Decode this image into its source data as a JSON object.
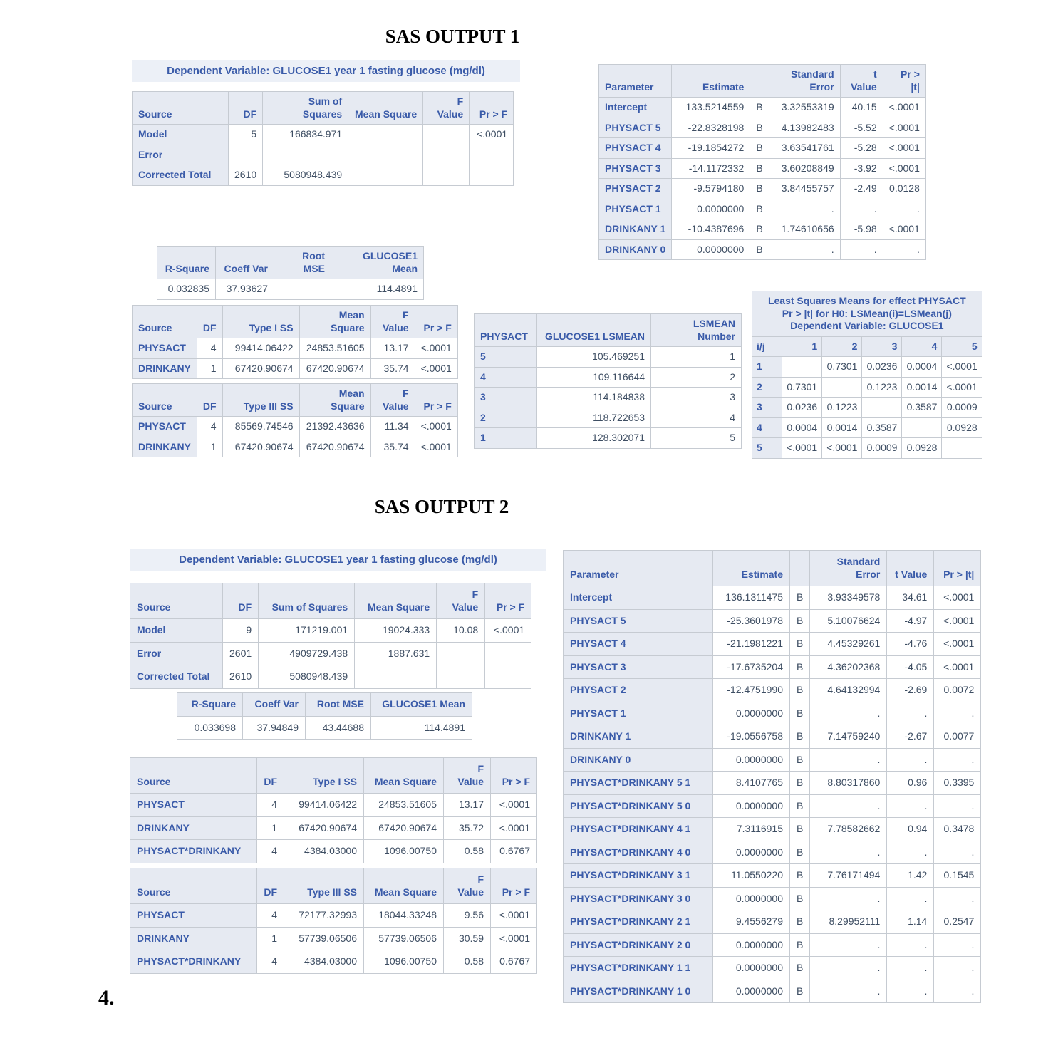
{
  "theme": {
    "header_bg": "#E6EAF2",
    "band_bg": "#ECF0F7",
    "border": "#C6CBD2",
    "header_text": "#3A5BA9",
    "data_text": "#3E4E63"
  },
  "titles": {
    "output1": "SAS OUTPUT 1",
    "output2": "SAS OUTPUT 2",
    "question_number": "4."
  },
  "output1": {
    "dep_var": "Dependent Variable: GLUCOSE1 year 1 fasting glucose (mg/dl)",
    "anova": {
      "columns": [
        "Source",
        "DF",
        "Sum of Squares",
        "Mean Square",
        "F Value",
        "Pr > F"
      ],
      "align": [
        "left",
        "right",
        "right",
        "right",
        "right",
        "right"
      ],
      "widths": [
        135,
        45,
        120,
        105,
        65,
        62
      ],
      "header_cols": 1,
      "rows": [
        [
          "Model",
          "5",
          "166834.971",
          "",
          "",
          "<.0001"
        ],
        [
          "Error",
          "",
          "",
          "",
          "",
          ""
        ],
        [
          "Corrected Total",
          "2610",
          "5080948.439",
          "",
          "",
          ""
        ]
      ]
    },
    "fit": {
      "columns": [
        "R-Square",
        "Coeff Var",
        "Root MSE",
        "GLUCOSE1 Mean"
      ],
      "align": [
        "right",
        "right",
        "right",
        "right"
      ],
      "widths": [
        82,
        82,
        80,
        130
      ],
      "header_cols": 0,
      "rows": [
        [
          "0.032835",
          "37.93627",
          "",
          "114.4891"
        ]
      ]
    },
    "type1": {
      "columns": [
        "Source",
        "DF",
        "Type I SS",
        "Mean Square",
        "F Value",
        "Pr > F"
      ],
      "align": [
        "left",
        "right",
        "right",
        "right",
        "right",
        "right"
      ],
      "widths": [
        85,
        35,
        108,
        100,
        62,
        60
      ],
      "header_cols": 1,
      "rows": [
        [
          "PHYSACT",
          "4",
          "99414.06422",
          "24853.51605",
          "13.17",
          "<.0001"
        ],
        [
          "DRINKANY",
          "1",
          "67420.90674",
          "67420.90674",
          "35.74",
          "<.0001"
        ]
      ]
    },
    "type3": {
      "columns": [
        "Source",
        "DF",
        "Type III SS",
        "Mean Square",
        "F Value",
        "Pr > F"
      ],
      "align": [
        "left",
        "right",
        "right",
        "right",
        "right",
        "right"
      ],
      "widths": [
        85,
        35,
        108,
        100,
        62,
        60
      ],
      "header_cols": 1,
      "rows": [
        [
          "PHYSACT",
          "4",
          "85569.74546",
          "21392.43636",
          "11.34",
          "<.0001"
        ],
        [
          "DRINKANY",
          "1",
          "67420.90674",
          "67420.90674",
          "35.74",
          "<.0001"
        ]
      ]
    },
    "estimates": {
      "columns": [
        "Parameter",
        "Estimate",
        "",
        "Standard\nError",
        "t Value",
        "Pr > |t|"
      ],
      "align": [
        "left",
        "right",
        "center",
        "right",
        "right",
        "right"
      ],
      "widths": [
        95,
        110,
        22,
        100,
        60,
        60
      ],
      "header_cols": 1,
      "rows": [
        [
          "Intercept",
          "133.5214559",
          "B",
          "3.32553319",
          "40.15",
          "<.0001"
        ],
        [
          "PHYSACT 5",
          "-22.8328198",
          "B",
          "4.13982483",
          "-5.52",
          "<.0001"
        ],
        [
          "PHYSACT 4",
          "-19.1854272",
          "B",
          "3.63541761",
          "-5.28",
          "<.0001"
        ],
        [
          "PHYSACT 3",
          "-14.1172332",
          "B",
          "3.60208849",
          "-3.92",
          "<.0001"
        ],
        [
          "PHYSACT 2",
          "-9.5794180",
          "B",
          "3.84455757",
          "-2.49",
          "0.0128"
        ],
        [
          "PHYSACT 1",
          "0.0000000",
          "B",
          ".",
          ".",
          "."
        ],
        [
          "DRINKANY 1",
          "-10.4387696",
          "B",
          "1.74610656",
          "-5.98",
          "<.0001"
        ],
        [
          "DRINKANY 0",
          "0.0000000",
          "B",
          ".",
          ".",
          "."
        ]
      ]
    },
    "lsmeans": {
      "columns": [
        "PHYSACT",
        "GLUCOSE1 LSMEAN",
        "LSMEAN Number"
      ],
      "align": [
        "left",
        "right",
        "right"
      ],
      "widths": [
        88,
        160,
        127
      ],
      "header_cols": 1,
      "rows": [
        [
          "5",
          "105.469251",
          "1"
        ],
        [
          "4",
          "109.116644",
          "2"
        ],
        [
          "3",
          "114.184838",
          "3"
        ],
        [
          "2",
          "118.722653",
          "4"
        ],
        [
          "1",
          "128.302071",
          "5"
        ]
      ]
    },
    "lsmeans_matrix": {
      "caption_lines": [
        "Least Squares Means for effect PHYSACT",
        "Pr > |t| for H0: LSMean(i)=LSMean(j)",
        "Dependent Variable: GLUCOSE1"
      ],
      "columns": [
        "i/j",
        "1",
        "2",
        "3",
        "4",
        "5"
      ],
      "align": [
        "left",
        "right",
        "right",
        "right",
        "right",
        "right"
      ],
      "widths": [
        42,
        56,
        56,
        56,
        56,
        56
      ],
      "header_cols": 1,
      "rows": [
        [
          "1",
          "",
          "0.7301",
          "0.0236",
          "0.0004",
          "<.0001"
        ],
        [
          "2",
          "0.7301",
          "",
          "0.1223",
          "0.0014",
          "<.0001"
        ],
        [
          "3",
          "0.0236",
          "0.1223",
          "",
          "0.3587",
          "0.0009"
        ],
        [
          "4",
          "0.0004",
          "0.0014",
          "0.3587",
          "",
          "0.0928"
        ],
        [
          "5",
          "<.0001",
          "<.0001",
          "0.0009",
          "0.0928",
          ""
        ]
      ]
    }
  },
  "output2": {
    "dep_var": "Dependent Variable: GLUCOSE1 year 1 fasting glucose (mg/dl)",
    "anova": {
      "columns": [
        "Source",
        "DF",
        "Sum of Squares",
        "Mean Square",
        "F Value",
        "Pr > F"
      ],
      "align": [
        "left",
        "right",
        "right",
        "right",
        "right",
        "right"
      ],
      "widths": [
        130,
        50,
        135,
        115,
        68,
        65
      ],
      "header_cols": 1,
      "rows": [
        [
          "Model",
          "9",
          "171219.001",
          "19024.333",
          "10.08",
          "<.0001"
        ],
        [
          "Error",
          "2601",
          "4909729.438",
          "1887.631",
          "",
          ""
        ],
        [
          "Corrected Total",
          "2610",
          "5080948.439",
          "",
          "",
          ""
        ]
      ]
    },
    "fit": {
      "columns": [
        "R-Square",
        "Coeff Var",
        "Root MSE",
        "GLUCOSE1 Mean"
      ],
      "align": [
        "right",
        "right",
        "right",
        "right"
      ],
      "widths": [
        92,
        88,
        92,
        142
      ],
      "header_cols": 0,
      "rows": [
        [
          "0.033698",
          "37.94849",
          "43.44688",
          "114.4891"
        ]
      ]
    },
    "type1": {
      "columns": [
        "Source",
        "DF",
        "Type I SS",
        "Mean Square",
        "F Value",
        "Pr > F"
      ],
      "align": [
        "left",
        "right",
        "right",
        "right",
        "right",
        "right"
      ],
      "widths": [
        178,
        38,
        112,
        112,
        66,
        65
      ],
      "header_cols": 1,
      "rows": [
        [
          "PHYSACT",
          "4",
          "99414.06422",
          "24853.51605",
          "13.17",
          "<.0001"
        ],
        [
          "DRINKANY",
          "1",
          "67420.90674",
          "67420.90674",
          "35.72",
          "<.0001"
        ],
        [
          "PHYSACT*DRINKANY",
          "4",
          "4384.03000",
          "1096.00750",
          "0.58",
          "0.6767"
        ]
      ]
    },
    "type3": {
      "columns": [
        "Source",
        "DF",
        "Type III SS",
        "Mean Square",
        "F Value",
        "Pr > F"
      ],
      "align": [
        "left",
        "right",
        "right",
        "right",
        "right",
        "right"
      ],
      "widths": [
        178,
        38,
        112,
        112,
        66,
        65
      ],
      "header_cols": 1,
      "rows": [
        [
          "PHYSACT",
          "4",
          "72177.32993",
          "18044.33248",
          "9.56",
          "<.0001"
        ],
        [
          "DRINKANY",
          "1",
          "57739.06506",
          "57739.06506",
          "30.59",
          "<.0001"
        ],
        [
          "PHYSACT*DRINKANY",
          "4",
          "4384.03000",
          "1096.00750",
          "0.58",
          "0.6767"
        ]
      ]
    },
    "estimates": {
      "columns": [
        "Parameter",
        "Estimate",
        "",
        "Standard\nError",
        "t Value",
        "Pr > |t|"
      ],
      "align": [
        "left",
        "right",
        "center",
        "right",
        "right",
        "right"
      ],
      "widths": [
        210,
        108,
        24,
        108,
        66,
        66
      ],
      "header_cols": 1,
      "rows": [
        [
          "Intercept",
          "136.1311475",
          "B",
          "3.93349578",
          "34.61",
          "<.0001"
        ],
        [
          "PHYSACT 5",
          "-25.3601978",
          "B",
          "5.10076624",
          "-4.97",
          "<.0001"
        ],
        [
          "PHYSACT 4",
          "-21.1981221",
          "B",
          "4.45329261",
          "-4.76",
          "<.0001"
        ],
        [
          "PHYSACT 3",
          "-17.6735204",
          "B",
          "4.36202368",
          "-4.05",
          "<.0001"
        ],
        [
          "PHYSACT 2",
          "-12.4751990",
          "B",
          "4.64132994",
          "-2.69",
          "0.0072"
        ],
        [
          "PHYSACT 1",
          "0.0000000",
          "B",
          ".",
          ".",
          "."
        ],
        [
          "DRINKANY 1",
          "-19.0556758",
          "B",
          "7.14759240",
          "-2.67",
          "0.0077"
        ],
        [
          "DRINKANY 0",
          "0.0000000",
          "B",
          ".",
          ".",
          "."
        ],
        [
          "PHYSACT*DRINKANY 5 1",
          "8.4107765",
          "B",
          "8.80317860",
          "0.96",
          "0.3395"
        ],
        [
          "PHYSACT*DRINKANY 5 0",
          "0.0000000",
          "B",
          ".",
          ".",
          "."
        ],
        [
          "PHYSACT*DRINKANY 4 1",
          "7.3116915",
          "B",
          "7.78582662",
          "0.94",
          "0.3478"
        ],
        [
          "PHYSACT*DRINKANY 4 0",
          "0.0000000",
          "B",
          ".",
          ".",
          "."
        ],
        [
          "PHYSACT*DRINKANY 3 1",
          "11.0550220",
          "B",
          "7.76171494",
          "1.42",
          "0.1545"
        ],
        [
          "PHYSACT*DRINKANY 3 0",
          "0.0000000",
          "B",
          ".",
          ".",
          "."
        ],
        [
          "PHYSACT*DRINKANY 2 1",
          "9.4556279",
          "B",
          "8.29952111",
          "1.14",
          "0.2547"
        ],
        [
          "PHYSACT*DRINKANY 2 0",
          "0.0000000",
          "B",
          ".",
          ".",
          "."
        ],
        [
          "PHYSACT*DRINKANY 1 1",
          "0.0000000",
          "B",
          ".",
          ".",
          "."
        ],
        [
          "PHYSACT*DRINKANY 1 0",
          "0.0000000",
          "B",
          ".",
          ".",
          "."
        ]
      ]
    }
  }
}
